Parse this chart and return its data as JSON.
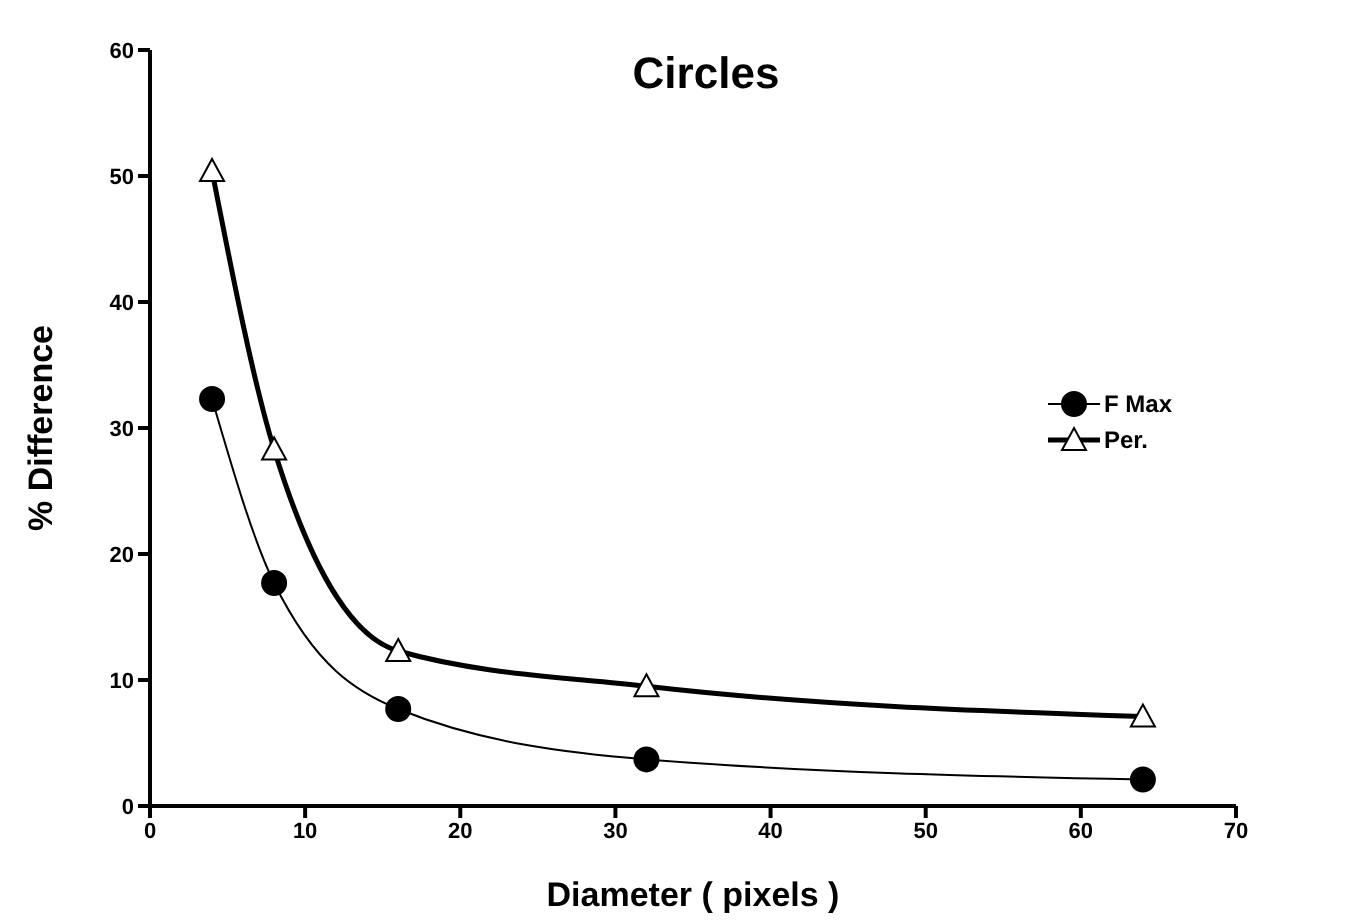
{
  "chart_data": {
    "type": "line",
    "title": "Circles",
    "xlabel": "Diameter ( pixels )",
    "ylabel": "% Difference",
    "x": [
      4,
      8,
      16,
      32,
      64
    ],
    "series": [
      {
        "name": "F Max",
        "color": "#000000",
        "marker": "circle",
        "values": [
          32.3,
          17.7,
          7.7,
          3.7,
          2.1
        ]
      },
      {
        "name": "Per.",
        "color": "#000000",
        "marker": "triangle",
        "values": [
          50.4,
          28.3,
          12.3,
          9.5,
          7.1
        ]
      }
    ],
    "xlim": [
      0,
      70
    ],
    "xticks": [
      0,
      10,
      20,
      30,
      40,
      50,
      60,
      70
    ],
    "ylim": [
      0,
      60
    ],
    "yticks": [
      0,
      10,
      20,
      30,
      40,
      50,
      60
    ],
    "grid": false,
    "legend": "right",
    "line_style": "solid"
  }
}
